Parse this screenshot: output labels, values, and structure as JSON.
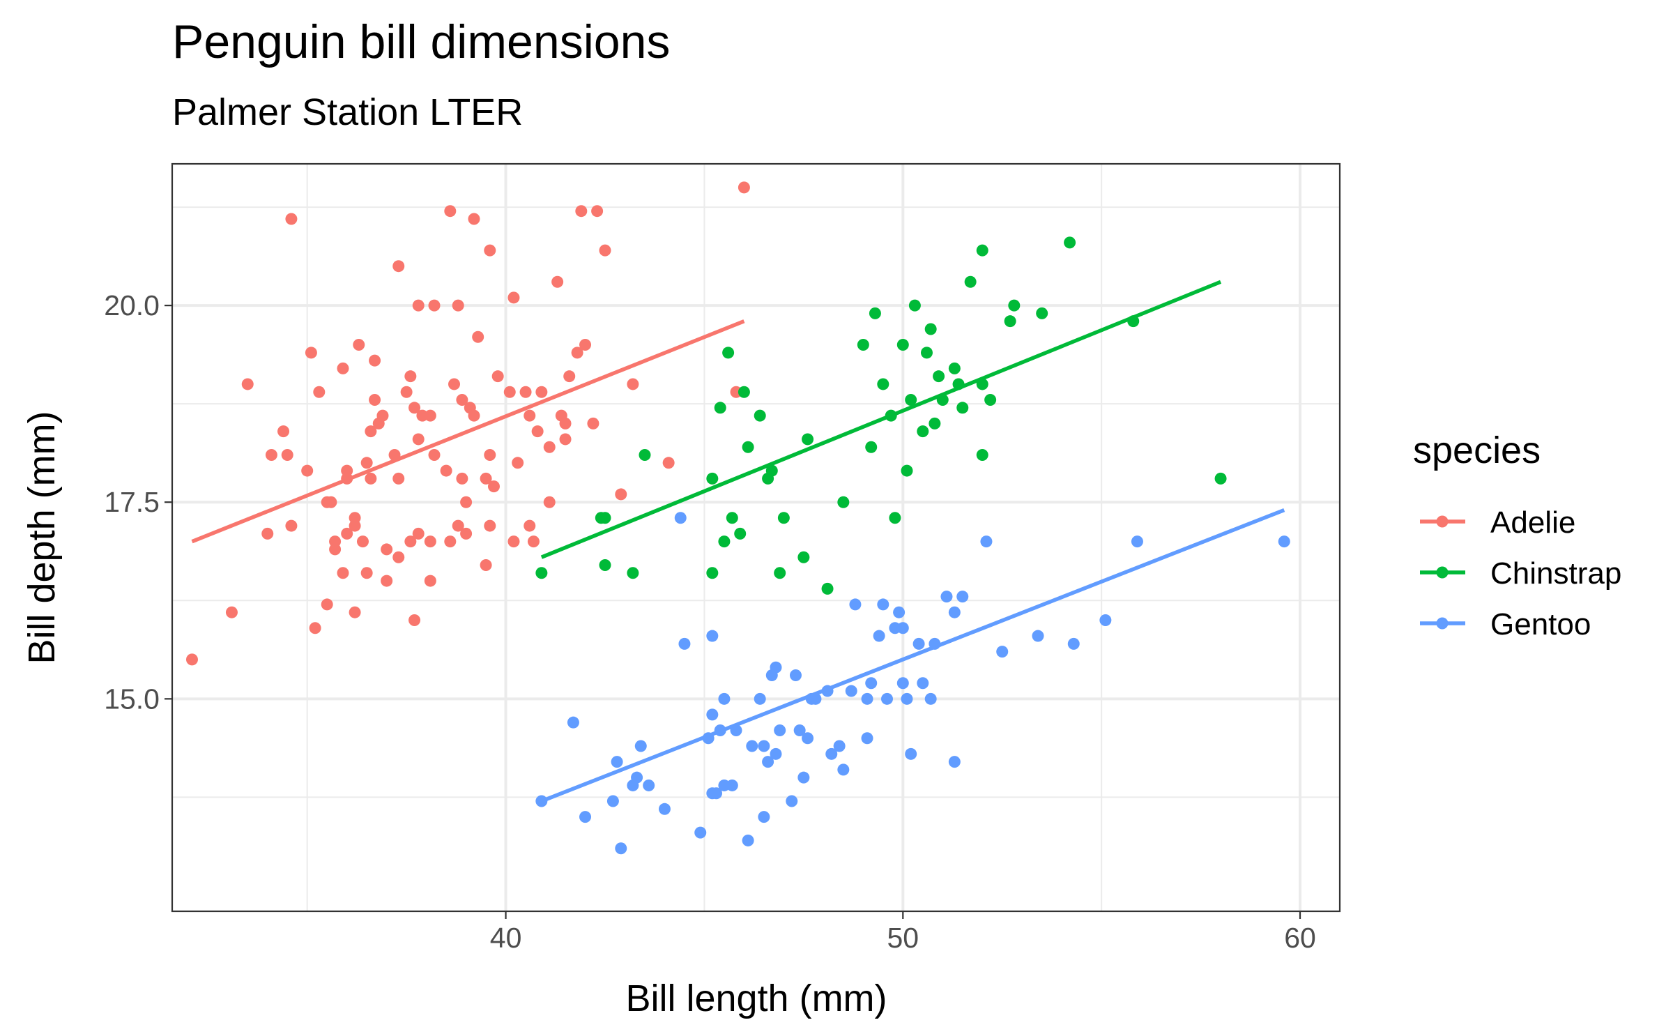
{
  "chart_data": {
    "type": "scatter",
    "title": "Penguin bill dimensions",
    "subtitle": "Palmer Station LTER",
    "xlabel": "Bill length (mm)",
    "ylabel": "Bill depth (mm)",
    "xlim": [
      31.6,
      61.0
    ],
    "ylim": [
      12.3,
      21.8
    ],
    "x_ticks": [
      40,
      50,
      60
    ],
    "x_tick_labels": [
      "40",
      "50",
      "60"
    ],
    "y_ticks": [
      15,
      17.5,
      20
    ],
    "y_tick_labels": [
      "15.0",
      "17.5",
      "20.0"
    ],
    "grid": true,
    "legend": {
      "title": "species",
      "position": "right"
    },
    "series": [
      {
        "name": "Adelie",
        "color": "#F8766D",
        "trend": {
          "x": [
            32.1,
            46.0
          ],
          "y": [
            17.0,
            19.8
          ]
        },
        "points": [
          [
            32.1,
            15.5
          ],
          [
            33.1,
            16.1
          ],
          [
            33.5,
            19.0
          ],
          [
            34.0,
            17.1
          ],
          [
            34.1,
            18.1
          ],
          [
            34.4,
            18.4
          ],
          [
            34.5,
            18.1
          ],
          [
            34.6,
            21.1
          ],
          [
            34.6,
            17.2
          ],
          [
            35.0,
            17.9
          ],
          [
            35.1,
            19.4
          ],
          [
            35.2,
            15.9
          ],
          [
            35.3,
            18.9
          ],
          [
            35.5,
            16.2
          ],
          [
            35.5,
            17.5
          ],
          [
            35.6,
            17.5
          ],
          [
            35.7,
            16.9
          ],
          [
            35.7,
            17.0
          ],
          [
            35.9,
            16.6
          ],
          [
            35.9,
            19.2
          ],
          [
            36.0,
            17.1
          ],
          [
            36.0,
            17.8
          ],
          [
            36.0,
            17.9
          ],
          [
            36.2,
            16.1
          ],
          [
            36.2,
            17.2
          ],
          [
            36.2,
            17.3
          ],
          [
            36.3,
            19.5
          ],
          [
            36.4,
            17.0
          ],
          [
            36.5,
            16.6
          ],
          [
            36.5,
            18.0
          ],
          [
            36.6,
            17.8
          ],
          [
            36.6,
            18.4
          ],
          [
            36.7,
            18.8
          ],
          [
            36.7,
            19.3
          ],
          [
            36.8,
            18.5
          ],
          [
            36.9,
            18.6
          ],
          [
            37.0,
            16.5
          ],
          [
            37.0,
            16.9
          ],
          [
            37.2,
            18.1
          ],
          [
            37.3,
            16.8
          ],
          [
            37.3,
            17.8
          ],
          [
            37.3,
            20.5
          ],
          [
            37.5,
            18.9
          ],
          [
            37.6,
            17.0
          ],
          [
            37.6,
            19.1
          ],
          [
            37.7,
            16.0
          ],
          [
            37.7,
            18.7
          ],
          [
            37.8,
            17.1
          ],
          [
            37.8,
            18.3
          ],
          [
            37.8,
            20.0
          ],
          [
            37.9,
            18.6
          ],
          [
            38.1,
            16.5
          ],
          [
            38.1,
            17.0
          ],
          [
            38.1,
            18.6
          ],
          [
            38.2,
            18.1
          ],
          [
            38.2,
            20.0
          ],
          [
            38.5,
            17.9
          ],
          [
            38.6,
            17.0
          ],
          [
            38.6,
            21.2
          ],
          [
            38.7,
            19.0
          ],
          [
            38.8,
            17.2
          ],
          [
            38.8,
            20.0
          ],
          [
            38.9,
            17.8
          ],
          [
            38.9,
            18.8
          ],
          [
            39.0,
            17.1
          ],
          [
            39.0,
            17.5
          ],
          [
            39.1,
            18.7
          ],
          [
            39.2,
            18.6
          ],
          [
            39.2,
            21.1
          ],
          [
            39.3,
            19.6
          ],
          [
            39.5,
            16.7
          ],
          [
            39.5,
            17.8
          ],
          [
            39.6,
            17.2
          ],
          [
            39.6,
            18.1
          ],
          [
            39.6,
            20.7
          ],
          [
            39.7,
            17.7
          ],
          [
            39.8,
            19.1
          ],
          [
            40.1,
            18.9
          ],
          [
            40.2,
            17.0
          ],
          [
            40.2,
            20.1
          ],
          [
            40.3,
            18.0
          ],
          [
            40.5,
            18.9
          ],
          [
            40.6,
            17.2
          ],
          [
            40.6,
            18.6
          ],
          [
            40.7,
            17.0
          ],
          [
            40.8,
            18.4
          ],
          [
            40.9,
            18.9
          ],
          [
            41.1,
            17.5
          ],
          [
            41.1,
            18.2
          ],
          [
            41.3,
            20.3
          ],
          [
            41.4,
            18.6
          ],
          [
            41.5,
            18.3
          ],
          [
            41.5,
            18.5
          ],
          [
            41.6,
            19.1
          ],
          [
            41.8,
            19.4
          ],
          [
            41.9,
            21.2
          ],
          [
            42.0,
            19.5
          ],
          [
            42.2,
            18.5
          ],
          [
            42.3,
            21.2
          ],
          [
            42.5,
            20.7
          ],
          [
            42.9,
            17.6
          ],
          [
            43.2,
            19.0
          ],
          [
            44.1,
            18.0
          ],
          [
            45.8,
            18.9
          ],
          [
            46.0,
            21.5
          ]
        ]
      },
      {
        "name": "Chinstrap",
        "color": "#00BA38",
        "trend": {
          "x": [
            40.9,
            58.0
          ],
          "y": [
            16.8,
            20.3
          ]
        },
        "points": [
          [
            40.9,
            16.6
          ],
          [
            42.4,
            17.3
          ],
          [
            42.5,
            16.7
          ],
          [
            42.5,
            17.3
          ],
          [
            43.2,
            16.6
          ],
          [
            43.5,
            18.1
          ],
          [
            45.2,
            16.6
          ],
          [
            45.2,
            17.8
          ],
          [
            45.4,
            18.7
          ],
          [
            45.5,
            17.0
          ],
          [
            45.6,
            19.4
          ],
          [
            45.7,
            17.3
          ],
          [
            45.9,
            17.1
          ],
          [
            46.0,
            18.9
          ],
          [
            46.1,
            18.2
          ],
          [
            46.4,
            18.6
          ],
          [
            46.6,
            17.8
          ],
          [
            46.7,
            17.9
          ],
          [
            46.9,
            16.6
          ],
          [
            47.0,
            17.3
          ],
          [
            47.5,
            16.8
          ],
          [
            47.6,
            18.3
          ],
          [
            48.1,
            16.4
          ],
          [
            48.5,
            17.5
          ],
          [
            49.0,
            19.5
          ],
          [
            49.2,
            18.2
          ],
          [
            49.3,
            19.9
          ],
          [
            49.5,
            19.0
          ],
          [
            49.7,
            18.6
          ],
          [
            49.8,
            17.3
          ],
          [
            50.0,
            19.5
          ],
          [
            50.1,
            17.9
          ],
          [
            50.2,
            18.8
          ],
          [
            50.3,
            20.0
          ],
          [
            50.5,
            18.4
          ],
          [
            50.6,
            19.4
          ],
          [
            50.7,
            19.7
          ],
          [
            50.8,
            18.5
          ],
          [
            50.9,
            19.1
          ],
          [
            51.0,
            18.8
          ],
          [
            51.3,
            19.2
          ],
          [
            51.4,
            19.0
          ],
          [
            51.5,
            18.7
          ],
          [
            51.7,
            20.3
          ],
          [
            52.0,
            18.1
          ],
          [
            52.0,
            19.0
          ],
          [
            52.0,
            20.7
          ],
          [
            52.2,
            18.8
          ],
          [
            52.7,
            19.8
          ],
          [
            52.8,
            20.0
          ],
          [
            53.5,
            19.9
          ],
          [
            54.2,
            20.8
          ],
          [
            55.8,
            19.8
          ],
          [
            58.0,
            17.8
          ]
        ]
      },
      {
        "name": "Gentoo",
        "color": "#619CFF",
        "trend": {
          "x": [
            40.9,
            59.6
          ],
          "y": [
            13.7,
            17.4
          ]
        },
        "points": [
          [
            40.9,
            13.7
          ],
          [
            41.7,
            14.7
          ],
          [
            42.0,
            13.5
          ],
          [
            42.7,
            13.7
          ],
          [
            42.8,
            14.2
          ],
          [
            42.9,
            13.1
          ],
          [
            43.2,
            13.9
          ],
          [
            43.3,
            14.0
          ],
          [
            43.4,
            14.4
          ],
          [
            43.6,
            13.9
          ],
          [
            44.0,
            13.6
          ],
          [
            44.4,
            17.3
          ],
          [
            44.5,
            15.7
          ],
          [
            44.9,
            13.3
          ],
          [
            45.1,
            14.5
          ],
          [
            45.2,
            13.8
          ],
          [
            45.2,
            14.8
          ],
          [
            45.2,
            15.8
          ],
          [
            45.3,
            13.8
          ],
          [
            45.4,
            14.6
          ],
          [
            45.5,
            13.9
          ],
          [
            45.5,
            15.0
          ],
          [
            45.7,
            13.9
          ],
          [
            45.8,
            14.6
          ],
          [
            46.1,
            13.2
          ],
          [
            46.2,
            14.4
          ],
          [
            46.4,
            15.0
          ],
          [
            46.5,
            13.5
          ],
          [
            46.5,
            14.4
          ],
          [
            46.6,
            14.2
          ],
          [
            46.7,
            15.3
          ],
          [
            46.8,
            14.3
          ],
          [
            46.8,
            15.4
          ],
          [
            46.9,
            14.6
          ],
          [
            47.2,
            13.7
          ],
          [
            47.3,
            15.3
          ],
          [
            47.4,
            14.6
          ],
          [
            47.5,
            14.0
          ],
          [
            47.6,
            14.5
          ],
          [
            47.7,
            15.0
          ],
          [
            47.8,
            15.0
          ],
          [
            48.1,
            15.1
          ],
          [
            48.2,
            14.3
          ],
          [
            48.4,
            14.4
          ],
          [
            48.5,
            14.1
          ],
          [
            48.7,
            15.1
          ],
          [
            48.8,
            16.2
          ],
          [
            49.1,
            14.5
          ],
          [
            49.1,
            15.0
          ],
          [
            49.2,
            15.2
          ],
          [
            49.4,
            15.8
          ],
          [
            49.5,
            16.2
          ],
          [
            49.6,
            15.0
          ],
          [
            49.8,
            15.9
          ],
          [
            49.9,
            16.1
          ],
          [
            50.0,
            15.2
          ],
          [
            50.0,
            15.9
          ],
          [
            50.1,
            15.0
          ],
          [
            50.2,
            14.3
          ],
          [
            50.4,
            15.7
          ],
          [
            50.5,
            15.2
          ],
          [
            50.7,
            15.0
          ],
          [
            50.8,
            15.7
          ],
          [
            51.1,
            16.3
          ],
          [
            51.3,
            14.2
          ],
          [
            51.3,
            16.1
          ],
          [
            51.5,
            16.3
          ],
          [
            52.1,
            17.0
          ],
          [
            52.5,
            15.6
          ],
          [
            53.4,
            15.8
          ],
          [
            54.3,
            15.7
          ],
          [
            55.1,
            16.0
          ],
          [
            55.9,
            17.0
          ],
          [
            59.6,
            17.0
          ]
        ]
      }
    ]
  }
}
